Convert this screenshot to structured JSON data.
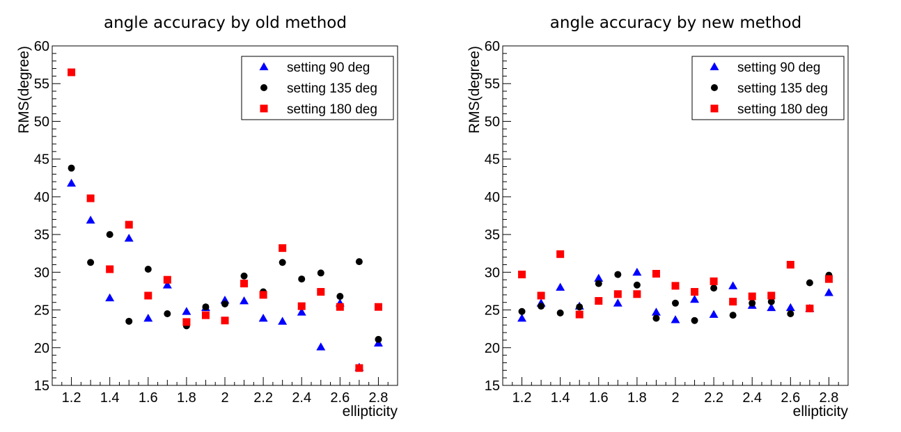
{
  "chart_data": [
    {
      "type": "scatter",
      "title": "angle accuracy by old method",
      "xlabel": "ellipticity",
      "ylabel": "RMS(degree)",
      "xlim": [
        1.1,
        2.9
      ],
      "ylim": [
        15,
        60
      ],
      "xticks": [
        "1.2",
        "1.4",
        "1.6",
        "1.8",
        "2",
        "2.2",
        "2.4",
        "2.6",
        "2.8"
      ],
      "yticks": [
        "15",
        "20",
        "25",
        "30",
        "35",
        "40",
        "45",
        "50",
        "55",
        "60"
      ],
      "legend_position": "top-right",
      "x": [
        1.2,
        1.3,
        1.4,
        1.5,
        1.6,
        1.7,
        1.8,
        1.9,
        2.0,
        2.1,
        2.2,
        2.3,
        2.4,
        2.5,
        2.6,
        2.7,
        2.8
      ],
      "series": [
        {
          "name": "setting 90 deg",
          "marker": "triangle",
          "color": "#0000ff",
          "values": [
            41.8,
            36.9,
            26.6,
            34.5,
            23.9,
            28.3,
            24.8,
            25.3,
            26.3,
            26.2,
            23.9,
            23.5,
            24.7,
            20.1,
            25.9,
            17.4,
            20.6
          ]
        },
        {
          "name": "setting 135 deg",
          "marker": "circle",
          "color": "#000000",
          "values": [
            43.8,
            31.3,
            35.0,
            23.5,
            30.4,
            24.5,
            22.9,
            25.4,
            25.8,
            29.5,
            27.4,
            31.3,
            29.1,
            29.9,
            26.8,
            31.4,
            21.1
          ]
        },
        {
          "name": "setting 180 deg",
          "marker": "square",
          "color": "#ff0000",
          "values": [
            56.5,
            39.8,
            30.4,
            36.3,
            26.9,
            29.0,
            23.4,
            24.3,
            23.6,
            28.5,
            27.0,
            33.2,
            25.5,
            27.4,
            25.4,
            17.3,
            25.4
          ]
        }
      ]
    },
    {
      "type": "scatter",
      "title": "angle accuracy by new method",
      "xlabel": "ellipticity",
      "ylabel": "RMS(degree)",
      "xlim": [
        1.1,
        2.9
      ],
      "ylim": [
        15,
        60
      ],
      "xticks": [
        "1.2",
        "1.4",
        "1.6",
        "1.8",
        "2",
        "2.2",
        "2.4",
        "2.6",
        "2.8"
      ],
      "yticks": [
        "15",
        "20",
        "25",
        "30",
        "35",
        "40",
        "45",
        "50",
        "55",
        "60"
      ],
      "legend_position": "top-right",
      "x": [
        1.2,
        1.3,
        1.4,
        1.5,
        1.6,
        1.7,
        1.8,
        1.9,
        2.0,
        2.1,
        2.2,
        2.3,
        2.4,
        2.5,
        2.6,
        2.7,
        2.8
      ],
      "series": [
        {
          "name": "setting 90 deg",
          "marker": "triangle",
          "color": "#0000ff",
          "values": [
            23.9,
            25.9,
            28.0,
            25.5,
            29.2,
            25.9,
            30.0,
            24.7,
            23.7,
            26.4,
            24.4,
            28.2,
            25.6,
            25.3,
            25.3,
            25.2,
            27.3
          ]
        },
        {
          "name": "setting 135 deg",
          "marker": "circle",
          "color": "#000000",
          "values": [
            24.8,
            25.5,
            24.6,
            25.4,
            28.5,
            29.7,
            28.3,
            23.9,
            25.9,
            23.6,
            27.9,
            24.3,
            25.9,
            26.1,
            24.5,
            28.6,
            29.6
          ]
        },
        {
          "name": "setting 180 deg",
          "marker": "square",
          "color": "#ff0000",
          "values": [
            29.7,
            26.9,
            32.4,
            24.4,
            26.2,
            27.1,
            27.1,
            29.8,
            28.2,
            27.4,
            28.8,
            26.1,
            26.8,
            26.9,
            31.0,
            25.2,
            29.1
          ]
        }
      ]
    }
  ]
}
